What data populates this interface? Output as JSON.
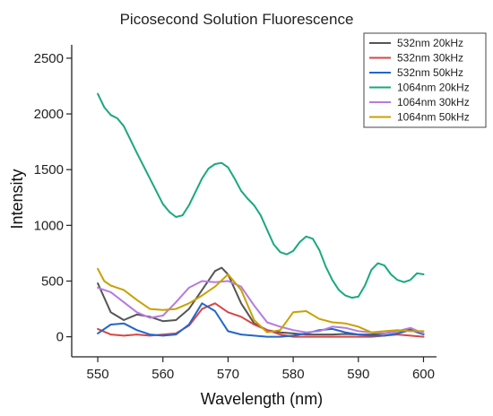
{
  "chart_data": {
    "type": "line",
    "title": "Picosecond Solution Fluorescence",
    "xlabel": "Wavelength (nm)",
    "ylabel": "Intensity",
    "xlim": [
      546,
      602
    ],
    "ylim": [
      -180,
      2620
    ],
    "xticks": [
      550,
      560,
      570,
      580,
      590,
      600
    ],
    "yticks": [
      0,
      500,
      1000,
      1500,
      2000,
      2500
    ],
    "legend_position": "top-right",
    "series": [
      {
        "name": "532nm 20kHz",
        "color": "#555555",
        "x": [
          550,
          552,
          554,
          556,
          558,
          560,
          562,
          564,
          566,
          568,
          569,
          570,
          572,
          574,
          576,
          578,
          580,
          582,
          584,
          586,
          588,
          590,
          592,
          594,
          596,
          598,
          600
        ],
        "y": [
          480,
          220,
          150,
          200,
          180,
          140,
          150,
          250,
          420,
          590,
          620,
          560,
          300,
          120,
          60,
          40,
          30,
          20,
          20,
          20,
          25,
          20,
          20,
          30,
          50,
          70,
          30
        ]
      },
      {
        "name": "532nm 30kHz",
        "color": "#d94545",
        "x": [
          550,
          552,
          554,
          556,
          558,
          560,
          562,
          564,
          566,
          568,
          570,
          572,
          574,
          576,
          578,
          580,
          582,
          584,
          586,
          588,
          590,
          592,
          594,
          596,
          598,
          600
        ],
        "y": [
          70,
          20,
          10,
          20,
          10,
          20,
          30,
          100,
          250,
          300,
          220,
          180,
          110,
          60,
          20,
          0,
          0,
          0,
          0,
          0,
          0,
          0,
          10,
          20,
          10,
          0
        ]
      },
      {
        "name": "532nm 50kHz",
        "color": "#2266cc",
        "x": [
          550,
          552,
          554,
          556,
          558,
          560,
          562,
          564,
          566,
          568,
          570,
          572,
          574,
          576,
          578,
          580,
          582,
          584,
          586,
          588,
          590,
          592,
          594,
          596,
          598,
          600
        ],
        "y": [
          30,
          110,
          120,
          60,
          20,
          10,
          20,
          110,
          300,
          230,
          50,
          20,
          10,
          0,
          0,
          10,
          30,
          60,
          70,
          40,
          20,
          10,
          10,
          30,
          60,
          20
        ]
      },
      {
        "name": "1064nm 20kHz",
        "color": "#1aa87f",
        "x": [
          550,
          551,
          552,
          553,
          554,
          556,
          558,
          560,
          561,
          562,
          563,
          564,
          565,
          566,
          567,
          568,
          569,
          570,
          571,
          572,
          573,
          574,
          575,
          576,
          577,
          578,
          579,
          580,
          581,
          582,
          583,
          584,
          585,
          586,
          587,
          588,
          589,
          590,
          591,
          592,
          593,
          594,
          595,
          596,
          597,
          598,
          599,
          600
        ],
        "y": [
          2180,
          2060,
          1990,
          1960,
          1890,
          1650,
          1420,
          1190,
          1120,
          1075,
          1090,
          1180,
          1300,
          1420,
          1510,
          1550,
          1560,
          1520,
          1420,
          1310,
          1240,
          1180,
          1090,
          960,
          830,
          760,
          740,
          770,
          850,
          900,
          880,
          780,
          630,
          510,
          420,
          370,
          350,
          360,
          460,
          600,
          660,
          640,
          560,
          510,
          490,
          510,
          570,
          560
        ]
      },
      {
        "name": "1064nm 30kHz",
        "color": "#b57be0",
        "x": [
          550,
          552,
          554,
          556,
          558,
          560,
          562,
          564,
          566,
          568,
          570,
          572,
          574,
          576,
          578,
          580,
          582,
          584,
          586,
          588,
          590,
          592,
          594,
          596,
          598,
          600
        ],
        "y": [
          440,
          400,
          310,
          220,
          170,
          190,
          310,
          440,
          500,
          490,
          500,
          450,
          280,
          130,
          90,
          60,
          40,
          50,
          90,
          80,
          50,
          40,
          30,
          50,
          80,
          30
        ]
      },
      {
        "name": "1064nm 50kHz",
        "color": "#c9a100",
        "x": [
          550,
          551,
          552,
          554,
          556,
          558,
          560,
          562,
          564,
          566,
          568,
          570,
          572,
          574,
          576,
          578,
          580,
          582,
          584,
          586,
          588,
          590,
          592,
          594,
          596,
          598,
          600
        ],
        "y": [
          610,
          500,
          460,
          420,
          330,
          250,
          240,
          250,
          300,
          370,
          450,
          560,
          420,
          150,
          40,
          60,
          220,
          230,
          160,
          130,
          120,
          90,
          40,
          50,
          60,
          50,
          50
        ]
      }
    ]
  }
}
